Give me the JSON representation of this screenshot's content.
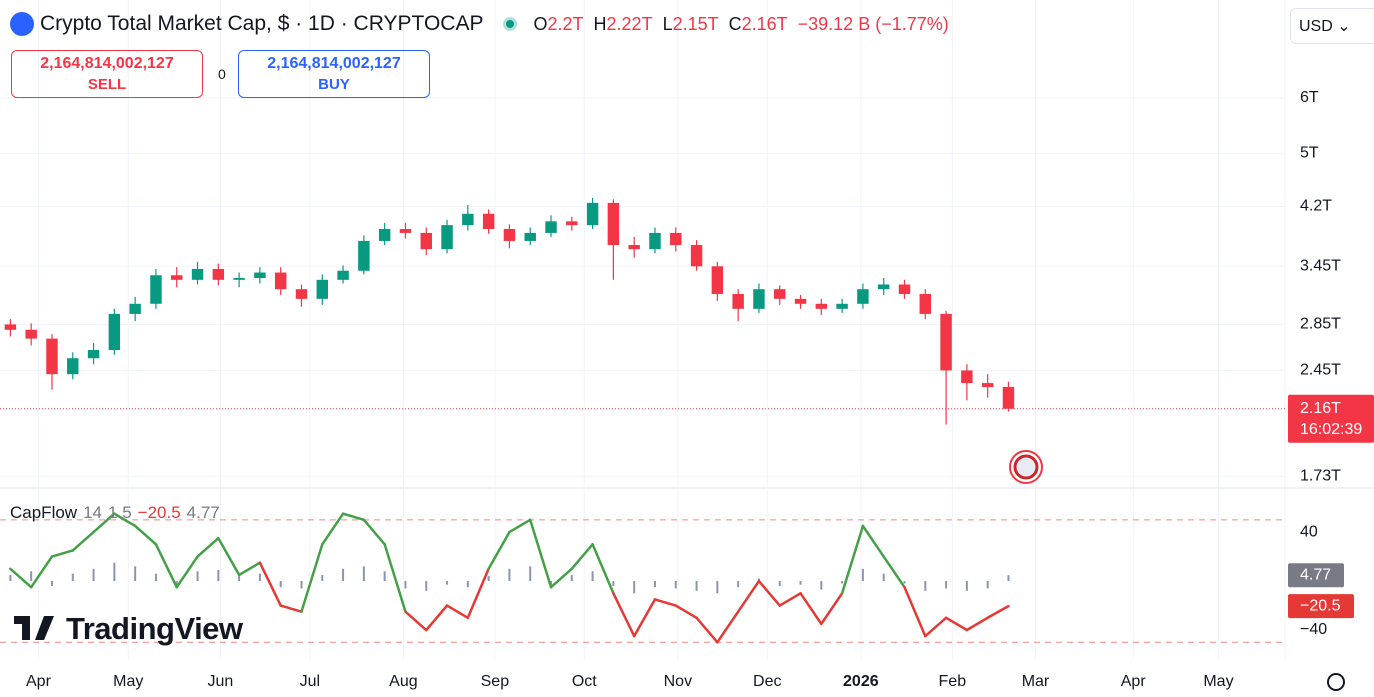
{
  "header": {
    "symbol": "Crypto Total Market Cap, $ · 1D · CRYPTOCAP",
    "ohlc": [
      {
        "key": "O",
        "value": "2.2T"
      },
      {
        "key": "H",
        "value": "2.22T"
      },
      {
        "key": "L",
        "value": "2.15T"
      },
      {
        "key": "C",
        "value": "2.16T"
      }
    ],
    "change": "−39.12 B (−1.77%)",
    "currency": "USD"
  },
  "trade": {
    "sell_price": "2,164,814,002,127",
    "sell_label": "SELL",
    "spread": "0",
    "buy_price": "2,164,814,002,127",
    "buy_label": "BUY"
  },
  "brand": "TradingView",
  "chart_data": [
    {
      "type": "candlestick",
      "x": [
        0,
        1,
        2,
        3,
        4,
        5,
        6,
        7,
        8,
        9,
        10,
        11,
        12,
        13,
        14,
        15,
        16,
        17,
        18,
        19,
        20,
        21,
        22,
        23,
        24,
        25,
        26,
        27,
        28,
        29,
        30,
        31,
        32,
        33,
        34,
        35,
        36,
        37,
        38,
        39,
        40,
        41,
        42,
        43,
        44,
        45,
        46,
        47,
        48
      ],
      "open": [
        2.85,
        2.8,
        2.72,
        2.42,
        2.55,
        2.62,
        2.95,
        3.05,
        3.35,
        3.3,
        3.42,
        3.3,
        3.32,
        3.38,
        3.2,
        3.1,
        3.3,
        3.4,
        3.75,
        3.9,
        3.85,
        3.65,
        3.95,
        4.1,
        3.9,
        3.75,
        3.85,
        4.0,
        3.95,
        4.25,
        3.7,
        3.65,
        3.85,
        3.7,
        3.45,
        3.15,
        3.0,
        3.2,
        3.1,
        3.05,
        3.0,
        3.05,
        3.2,
        3.25,
        3.15,
        2.95,
        2.45,
        2.35,
        2.32
      ],
      "high": [
        2.9,
        2.86,
        2.76,
        2.6,
        2.68,
        3.0,
        3.12,
        3.42,
        3.44,
        3.5,
        3.48,
        3.38,
        3.44,
        3.44,
        3.25,
        3.36,
        3.46,
        3.82,
        3.98,
        3.98,
        3.92,
        4.02,
        4.22,
        4.16,
        3.96,
        3.92,
        4.08,
        4.06,
        4.32,
        4.3,
        3.8,
        3.92,
        3.92,
        3.76,
        3.5,
        3.2,
        3.26,
        3.24,
        3.14,
        3.1,
        3.1,
        3.26,
        3.32,
        3.3,
        3.2,
        2.98,
        2.5,
        2.42,
        2.36
      ],
      "low": [
        2.74,
        2.66,
        2.3,
        2.38,
        2.5,
        2.58,
        2.88,
        3.0,
        3.22,
        3.25,
        3.24,
        3.22,
        3.26,
        3.14,
        3.02,
        3.04,
        3.26,
        3.36,
        3.7,
        3.78,
        3.58,
        3.6,
        3.88,
        3.84,
        3.66,
        3.7,
        3.8,
        3.88,
        3.9,
        3.3,
        3.55,
        3.6,
        3.62,
        3.4,
        3.08,
        2.88,
        2.96,
        3.04,
        3.0,
        2.94,
        2.96,
        3.0,
        3.14,
        3.1,
        2.9,
        2.05,
        2.22,
        2.24,
        2.14
      ],
      "close": [
        2.8,
        2.72,
        2.42,
        2.55,
        2.62,
        2.95,
        3.05,
        3.35,
        3.3,
        3.42,
        3.3,
        3.32,
        3.38,
        3.2,
        3.1,
        3.3,
        3.4,
        3.75,
        3.9,
        3.85,
        3.65,
        3.95,
        4.1,
        3.9,
        3.75,
        3.85,
        4.0,
        3.95,
        4.25,
        3.7,
        3.65,
        3.85,
        3.7,
        3.45,
        3.15,
        3.0,
        3.2,
        3.1,
        3.05,
        3.0,
        3.05,
        3.2,
        3.25,
        3.15,
        2.95,
        2.45,
        2.35,
        2.32,
        2.16
      ],
      "up_color": "#089981",
      "down_color": "#f23645",
      "log_scale": true,
      "ylim": [
        1.67,
        8.28
      ],
      "yticks": [
        {
          "value": 6,
          "label": "6T"
        },
        {
          "value": 5,
          "label": "5T"
        },
        {
          "value": 4.2,
          "label": "4.2T"
        },
        {
          "value": 3.45,
          "label": "3.45T"
        },
        {
          "value": 2.85,
          "label": "2.85T"
        },
        {
          "value": 2.45,
          "label": "2.45T"
        },
        {
          "value": 1.73,
          "label": "1.73T"
        }
      ],
      "xlim": [
        -0.5,
        61.3
      ],
      "xticks": [
        {
          "value": 1.35,
          "label": "Apr"
        },
        {
          "value": 5.67,
          "label": "May"
        },
        {
          "value": 10.1,
          "label": "Jun"
        },
        {
          "value": 14.4,
          "label": "Jul"
        },
        {
          "value": 18.9,
          "label": "Aug"
        },
        {
          "value": 23.3,
          "label": "Sep"
        },
        {
          "value": 27.6,
          "label": "Oct"
        },
        {
          "value": 32.1,
          "label": "Nov"
        },
        {
          "value": 36.4,
          "label": "Dec"
        },
        {
          "value": 40.9,
          "label": "2026"
        },
        {
          "value": 45.3,
          "label": "Feb"
        },
        {
          "value": 49.3,
          "label": "Mar"
        },
        {
          "value": 54.0,
          "label": "Apr"
        },
        {
          "value": 58.1,
          "label": "May"
        }
      ],
      "last_price": {
        "value": 2.16,
        "label": "2.16T"
      },
      "countdown": "16:02:39",
      "last_color": "#f23645",
      "grid": true
    },
    {
      "type": "oscillator",
      "name": "CapFlow",
      "params": [
        "14",
        "1.5"
      ],
      "series": [
        {
          "name": "CapFlow",
          "kind": "line",
          "up_color": "#43a047",
          "down_color": "#e53935",
          "values": [
            10,
            -5,
            20,
            25,
            40,
            55,
            45,
            30,
            -5,
            20,
            35,
            5,
            15,
            -20,
            -25,
            30,
            55,
            50,
            30,
            -25,
            -40,
            -20,
            -30,
            10,
            40,
            50,
            -5,
            10,
            30,
            -10,
            -45,
            -15,
            -20,
            -30,
            -50,
            -25,
            0,
            -20,
            -10,
            -35,
            -10,
            45,
            20,
            -5,
            -45,
            -30,
            -40,
            -30,
            -20.5
          ],
          "last_label": "−20.5"
        },
        {
          "name": "Histogram",
          "kind": "histogram",
          "color": "#8c95b0",
          "values": [
            5,
            8,
            -4,
            6,
            10,
            15,
            12,
            6,
            -3,
            8,
            9,
            4,
            6,
            -5,
            -6,
            5,
            10,
            12,
            8,
            -6,
            -8,
            -3,
            -5,
            4,
            10,
            12,
            -3,
            5,
            8,
            -4,
            -10,
            -5,
            -6,
            -8,
            -10,
            -5,
            2,
            -4,
            -3,
            -7,
            -2,
            10,
            6,
            -2,
            -8,
            -6,
            -8,
            -6,
            4.77
          ],
          "last_label": "4.77",
          "label_color": "#787b86"
        }
      ],
      "band_levels": [
        50,
        -50
      ],
      "ylim": [
        -64.5,
        76
      ],
      "yticks": [
        40,
        {
          "value": -40,
          "label": "−40"
        }
      ]
    }
  ]
}
